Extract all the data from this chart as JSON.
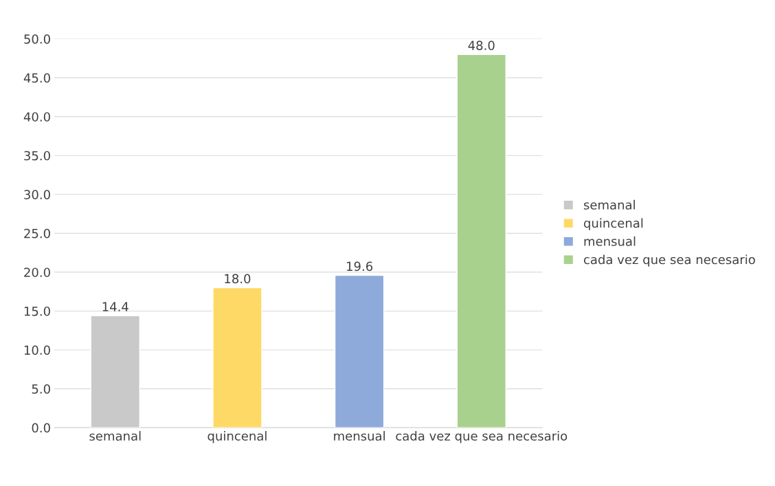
{
  "chart_data": {
    "type": "bar",
    "categories": [
      "semanal",
      "quincenal",
      "mensual",
      "cada vez que sea necesario"
    ],
    "series": [
      {
        "name": "semanal",
        "color": "#c9c9c9",
        "values": [
          14.4,
          null,
          null,
          null
        ],
        "value_labels": [
          "14.4",
          null,
          null,
          null
        ]
      },
      {
        "name": "quincenal",
        "color": "#ffd966",
        "values": [
          null,
          18.0,
          null,
          null
        ],
        "value_labels": [
          null,
          "18.0",
          null,
          null
        ]
      },
      {
        "name": "mensual",
        "color": "#8eaadb",
        "values": [
          null,
          null,
          19.6,
          null
        ],
        "value_labels": [
          null,
          null,
          "19.6",
          null
        ]
      },
      {
        "name": "cada vez que sea necesario",
        "color": "#a9d18e",
        "values": [
          null,
          null,
          null,
          48.0
        ],
        "value_labels": [
          null,
          null,
          null,
          "48.0"
        ]
      }
    ],
    "ylim": [
      0,
      50
    ],
    "yticks": [
      {
        "value": 0,
        "label": "0.0"
      },
      {
        "value": 5,
        "label": "5.0"
      },
      {
        "value": 10,
        "label": "10.0"
      },
      {
        "value": 15,
        "label": "15.0"
      },
      {
        "value": 20,
        "label": "20.0"
      },
      {
        "value": 25,
        "label": "25.0"
      },
      {
        "value": 30,
        "label": "30.0"
      },
      {
        "value": 35,
        "label": "35.0"
      },
      {
        "value": 40,
        "label": "40.0"
      },
      {
        "value": 45,
        "label": "45.0"
      },
      {
        "value": 50,
        "label": "50.0"
      }
    ],
    "grid": "y",
    "legend": "right"
  }
}
